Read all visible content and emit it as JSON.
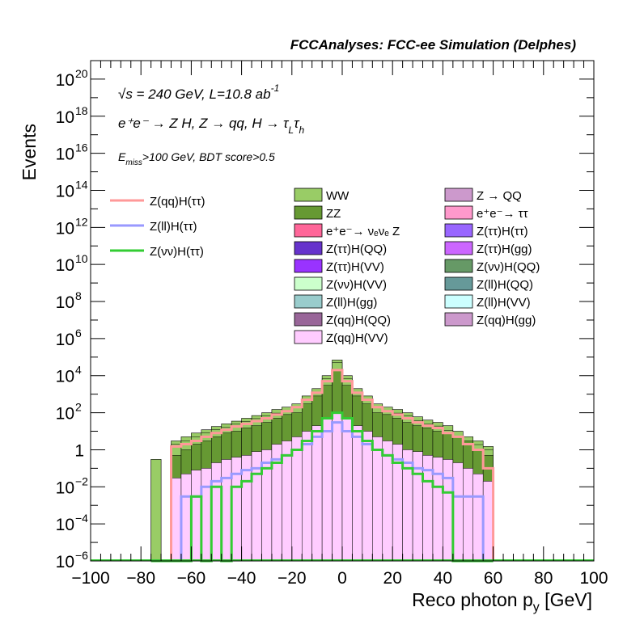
{
  "header": "FCCAnalyses: FCC-ee Simulation (Delphes)",
  "annotations": {
    "energy": "√s = 240 GeV, L=10.8 ab",
    "energy_exp": "-1",
    "process": "e⁺e⁻ → Z H, Z → qq, H → τ",
    "process_sub1": "L",
    "process_tau2": "τ",
    "process_sub2": "h",
    "cuts_E": "E",
    "cuts_sub": "miss",
    "cuts_rest": ">100 GeV, BDT score>0.5"
  },
  "chart_data": {
    "type": "bar",
    "title": "",
    "xlabel": "Reco photon p",
    "xlabel_sub": "y",
    "xlabel_unit": " [GeV]",
    "ylabel": "Events",
    "xlim": [
      -100,
      100
    ],
    "ylim": [
      1e-06,
      1e+21
    ],
    "y_scale": "log",
    "x_ticks": [
      "−100",
      "−80",
      "−60",
      "−40",
      "−20",
      "0",
      "20",
      "40",
      "60",
      "80",
      "100"
    ],
    "y_ticks": [
      {
        "label": "10",
        "exp": "−6",
        "value": 1e-06
      },
      {
        "label": "10",
        "exp": "−4",
        "value": 0.0001
      },
      {
        "label": "10",
        "exp": "−2",
        "value": 0.01
      },
      {
        "label": "1",
        "exp": "",
        "value": 1
      },
      {
        "label": "10",
        "exp": "2",
        "value": 100.0
      },
      {
        "label": "10",
        "exp": "4",
        "value": 10000.0
      },
      {
        "label": "10",
        "exp": "6",
        "value": 1000000.0
      },
      {
        "label": "10",
        "exp": "8",
        "value": 100000000.0
      },
      {
        "label": "10",
        "exp": "10",
        "value": 10000000000.0
      },
      {
        "label": "10",
        "exp": "12",
        "value": 1000000000000.0
      },
      {
        "label": "10",
        "exp": "14",
        "value": 100000000000000.0
      },
      {
        "label": "10",
        "exp": "16",
        "value": 1e+16
      },
      {
        "label": "10",
        "exp": "18",
        "value": 1e+18
      },
      {
        "label": "10",
        "exp": "20",
        "value": 1e+20
      }
    ],
    "bin_width": 4,
    "bin_edges_from": -76,
    "stack_total": [
      0.3,
      1e-06,
      3,
      5,
      8,
      12,
      18,
      25,
      35,
      50,
      70,
      100,
      150,
      200,
      300,
      800,
      2000,
      10000,
      70000,
      10000,
      2000,
      800,
      300,
      200,
      150,
      100,
      60,
      40,
      30,
      20,
      10,
      5,
      3,
      1.5
    ],
    "stack_components": [
      {
        "name": "Z(qq)H(VV)",
        "color": "#ffccff",
        "values": [
          1e-06,
          1e-06,
          0.03,
          0.05,
          0.08,
          0.1,
          0.2,
          0.3,
          0.4,
          0.5,
          0.8,
          1,
          2,
          3,
          5,
          10,
          20,
          50,
          100,
          50,
          20,
          10,
          5,
          3,
          2,
          1,
          0.8,
          0.5,
          0.4,
          0.3,
          0.2,
          0.1,
          0.05,
          0.02
        ]
      },
      {
        "name": "Z(ll)H(QQ)",
        "color": "#669999",
        "values": [
          1e-06,
          1e-06,
          0.005,
          0.005,
          0.005,
          0.008,
          0.01,
          0.02,
          0.03,
          0.05,
          0.08,
          0.1,
          0.2,
          0.3,
          0.5,
          1,
          2,
          5,
          10,
          5,
          2,
          1,
          0.5,
          0.3,
          0.2,
          0.1,
          0.08,
          0.05,
          0.03,
          0.02,
          0.01,
          0.005,
          0.005,
          0.003
        ]
      },
      {
        "name": "e⁺e⁻→ νₑνₑ Z",
        "color": "#ff6699",
        "values": [
          1e-06,
          1e-06,
          1e-06,
          1e-06,
          1e-06,
          1e-06,
          1e-06,
          1e-06,
          1e-06,
          1e-06,
          1e-06,
          1e-06,
          1e-06,
          0.05,
          0.1,
          0.3,
          1,
          3,
          5,
          3,
          1,
          0.3,
          0.1,
          0.05,
          1e-06,
          1e-06,
          1e-06,
          1e-06,
          1e-06,
          1e-06,
          1e-06,
          1e-06,
          1e-06,
          1e-06
        ]
      },
      {
        "name": "Z(ττ)H(VV)",
        "color": "#9933ff",
        "values": [
          1e-06,
          1e-06,
          0.005,
          0.02,
          0.03,
          0.05,
          0.08,
          0.1,
          0.15,
          0.2,
          0.3,
          0.5,
          0.8,
          1,
          2,
          3,
          5,
          10,
          20,
          10,
          5,
          3,
          2,
          1,
          0.8,
          0.5,
          0.3,
          0.2,
          0.15,
          0.1,
          0.08,
          0.05,
          0.02,
          0.005
        ]
      },
      {
        "name": "ZZ",
        "color": "#669933",
        "values": [
          1e-06,
          1e-06,
          0.5,
          1,
          2,
          3,
          5,
          8,
          10,
          15,
          20,
          30,
          50,
          80,
          100,
          300,
          800,
          3000,
          20000,
          3000,
          800,
          300,
          100,
          80,
          50,
          30,
          20,
          15,
          10,
          8,
          5,
          3,
          1,
          0.5
        ]
      },
      {
        "name": "WW",
        "color": "#99cc66",
        "values": [
          0.3,
          1e-06,
          2,
          3,
          5,
          8,
          12,
          16,
          24,
          34,
          48,
          68,
          95,
          115,
          190,
          480,
          1170,
          6900,
          49800,
          6900,
          1170,
          480,
          190,
          115,
          95,
          68,
          38,
          24,
          19,
          11,
          4.7,
          1.8,
          1.9,
          1
        ]
      }
    ],
    "signal_series": [
      {
        "name": "Z(qq)H(ττ)",
        "color": "#ff9999",
        "values": [
          1e-06,
          1e-06,
          1.5,
          2,
          3,
          5,
          8,
          12,
          18,
          25,
          35,
          50,
          80,
          120,
          200,
          500,
          1200,
          5000,
          20000,
          5000,
          1200,
          500,
          200,
          120,
          80,
          50,
          30,
          20,
          15,
          8,
          5,
          2,
          1,
          0.1
        ]
      },
      {
        "name": "Z(ll)H(ττ)",
        "color": "#9999ff",
        "values": [
          1e-06,
          1e-06,
          1e-06,
          0.003,
          0.003,
          0.01,
          0.02,
          0.03,
          0.05,
          0.08,
          0.1,
          0.2,
          0.3,
          0.5,
          1,
          2,
          5,
          10,
          30,
          10,
          5,
          2,
          1,
          0.5,
          0.3,
          0.2,
          0.1,
          0.08,
          0.05,
          0.03,
          0.003,
          0.003,
          0.003,
          1e-06
        ]
      },
      {
        "name": "Z(νν)H(ττ)",
        "color": "#33cc33",
        "values": [
          1e-06,
          1e-06,
          1e-06,
          1e-06,
          0.003,
          1e-06,
          0.01,
          1e-06,
          0.01,
          0.02,
          0.05,
          0.1,
          0.2,
          0.5,
          1,
          3,
          10,
          50,
          100,
          50,
          10,
          3,
          1,
          0.5,
          0.2,
          0.1,
          0.05,
          0.02,
          0.01,
          0.005,
          1e-06,
          1e-06,
          1e-06,
          1e-06
        ]
      }
    ],
    "legend_signals": [
      {
        "name": "Z(qq)H(ττ)",
        "color": "#ff9999"
      },
      {
        "name": "Z(ll)H(ττ)",
        "color": "#9999ff"
      },
      {
        "name": "Z(νν)H(ττ)",
        "color": "#33cc33"
      }
    ],
    "legend_backgrounds_col1": [
      {
        "name": "WW",
        "color": "#99cc66"
      },
      {
        "name": "ZZ",
        "color": "#669933"
      },
      {
        "name": "e⁺e⁻→ νₑνₑ Z",
        "color": "#ff6699"
      },
      {
        "name": "Z(ττ)H(QQ)",
        "color": "#6633cc"
      },
      {
        "name": "Z(ττ)H(VV)",
        "color": "#9933ff"
      },
      {
        "name": "Z(νν)H(VV)",
        "color": "#ccffcc"
      },
      {
        "name": "Z(ll)H(gg)",
        "color": "#99cccc"
      },
      {
        "name": "Z(qq)H(QQ)",
        "color": "#996699"
      },
      {
        "name": "Z(qq)H(VV)",
        "color": "#ffccff"
      }
    ],
    "legend_backgrounds_col2": [
      {
        "name": "Z → QQ",
        "color": "#cc99cc"
      },
      {
        "name": "e⁺e⁻→ ττ",
        "color": "#ff99cc"
      },
      {
        "name": "Z(ττ)H(ττ)",
        "color": "#9966ff"
      },
      {
        "name": "Z(ττ)H(gg)",
        "color": "#cc66ff"
      },
      {
        "name": "Z(νν)H(QQ)",
        "color": "#669966"
      },
      {
        "name": "Z(ll)H(QQ)",
        "color": "#669999"
      },
      {
        "name": "Z(ll)H(VV)",
        "color": "#ccffff"
      },
      {
        "name": "Z(qq)H(gg)",
        "color": "#cc99cc"
      }
    ]
  }
}
